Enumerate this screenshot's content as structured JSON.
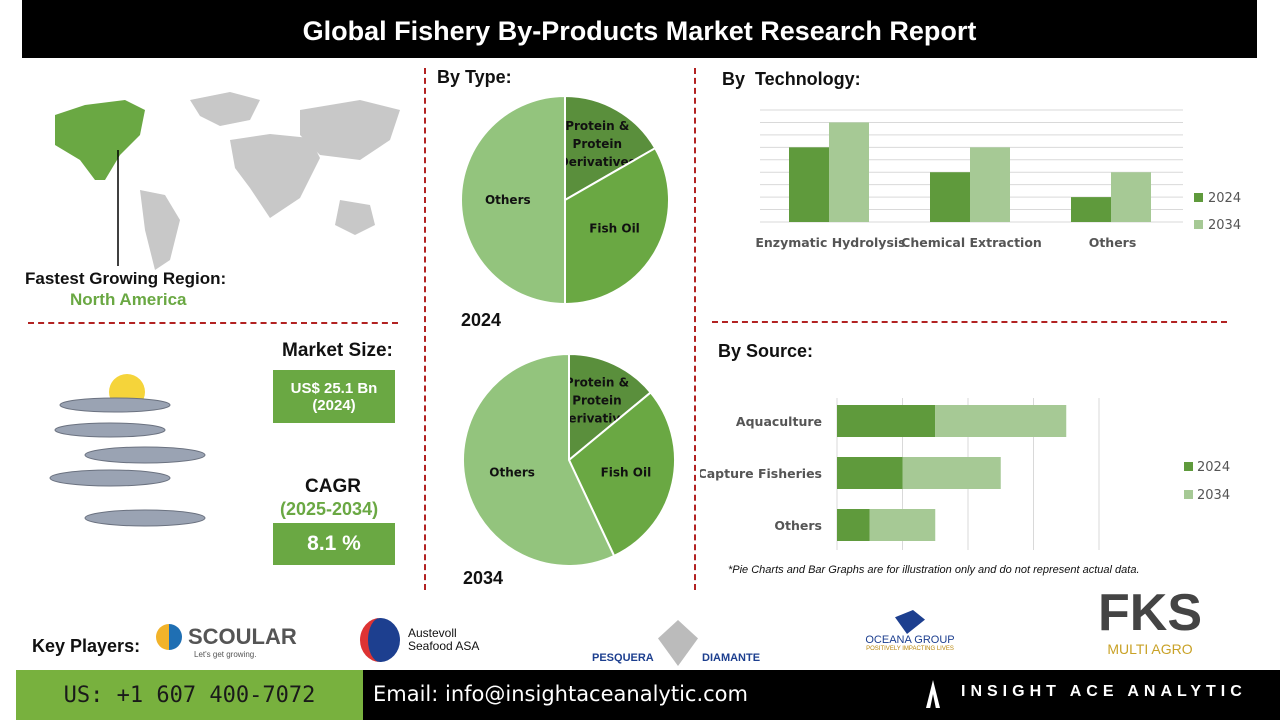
{
  "title": "Global Fishery By-Products Market Research Report",
  "region": {
    "label": "Fastest Growing Region:",
    "value": "North America"
  },
  "market_size": {
    "label": "Market Size:",
    "value": "US$ 25.1 Bn",
    "year": "(2024)"
  },
  "cagr": {
    "label": "CAGR",
    "period": "(2025-2034)",
    "value": "8.1 %"
  },
  "sections": {
    "type": "By Type:",
    "technology": "By  Technology:",
    "source": "By Source:"
  },
  "note": "*Pie Charts and Bar Graphs are for illustration only and do not represent actual data.",
  "key_players": {
    "label": "Key Players:",
    "logos": [
      "SCOULAR",
      "Let's get growing.",
      "Austevoll",
      "Seafood ASA",
      "PESQUERA",
      "DIAMANTE",
      "OCEANA GROUP",
      "POSITIVELY IMPACTING LIVES",
      "FKS",
      "MULTI AGRO"
    ]
  },
  "footer": {
    "phone": "US: +1 607 400-7072",
    "email": "Email: info@insightaceanalytic.com",
    "brand": "INSIGHT ACE ANALYTIC"
  },
  "colors": {
    "dark_green": "#5f9a3c",
    "light_green": "#a6c995",
    "pie_others": "#93c47d",
    "pie_fish": "#6aa843",
    "pie_protein": "#5a8f3c",
    "divider": "#b22222"
  },
  "chart_data": [
    {
      "type": "pie",
      "title": "2024",
      "labels": [
        "Protein & Protein Derivatives",
        "Fish Oil",
        "Others"
      ],
      "values": [
        16.7,
        33.3,
        50
      ]
    },
    {
      "type": "pie",
      "title": "2034",
      "labels": [
        "Protein & Protein Derivatives",
        "Fish Oil",
        "Others"
      ],
      "values": [
        14,
        29,
        57
      ]
    },
    {
      "type": "bar",
      "categories": [
        "Enzymatic Hydrolysis",
        "Chemical Extraction",
        "Others"
      ],
      "series": [
        {
          "name": "2024",
          "values": [
            6,
            4,
            2
          ]
        },
        {
          "name": "2034",
          "values": [
            8,
            6,
            4
          ]
        }
      ],
      "ylim": [
        0,
        9
      ],
      "grid": true,
      "legend": "right"
    },
    {
      "type": "bar",
      "orientation": "horizontal",
      "stacked": true,
      "categories": [
        "Aquaculture",
        "Capture Fisheries",
        "Others"
      ],
      "series": [
        {
          "name": "2024",
          "values": [
            1.5,
            1,
            0.5
          ]
        },
        {
          "name": "2034",
          "values": [
            2,
            1.5,
            1
          ]
        }
      ],
      "xlim": [
        0,
        4
      ],
      "grid": true,
      "legend": "right"
    }
  ]
}
